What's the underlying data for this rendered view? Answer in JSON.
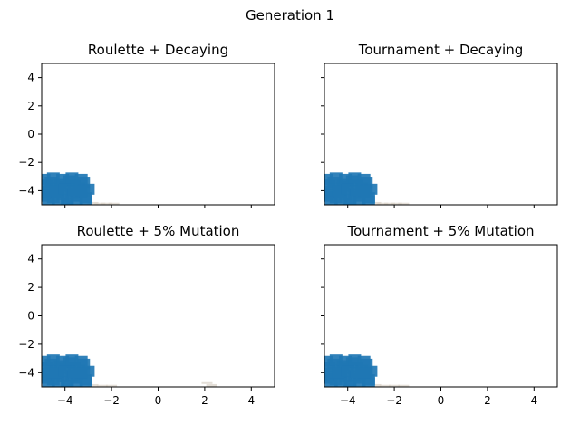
{
  "figure": {
    "title": "Generation 1"
  },
  "chart_data": [
    {
      "type": "scatter",
      "title": "Roulette + Decaying",
      "xlim": [
        -5,
        5
      ],
      "ylim": [
        -5,
        5
      ],
      "xticks": [],
      "yticks": [
        -4,
        -2,
        0,
        2,
        4
      ],
      "xtick_labels": [],
      "ytick_labels": [
        "−4",
        "−2",
        "0",
        "2",
        "4"
      ],
      "color": "#1f77b4",
      "series": [
        {
          "name": "population",
          "points": [
            [
              -4.9,
              -4.4
            ],
            [
              -4.7,
              -4.2
            ],
            [
              -4.5,
              -4.5
            ],
            [
              -4.3,
              -4.1
            ],
            [
              -4.1,
              -4.3
            ],
            [
              -3.9,
              -4.6
            ],
            [
              -3.7,
              -4.2
            ],
            [
              -3.5,
              -4.4
            ],
            [
              -3.3,
              -4.1
            ],
            [
              -3.1,
              -4.5
            ],
            [
              -4.8,
              -3.6
            ],
            [
              -4.6,
              -3.4
            ],
            [
              -4.4,
              -3.8
            ],
            [
              -4.2,
              -3.5
            ],
            [
              -4.0,
              -3.7
            ],
            [
              -3.8,
              -3.3
            ],
            [
              -3.6,
              -3.6
            ],
            [
              -3.4,
              -3.8
            ],
            [
              -3.2,
              -3.4
            ],
            [
              -3.0,
              -3.9
            ],
            [
              -4.9,
              -3.2
            ],
            [
              -4.5,
              -3.1
            ],
            [
              -4.1,
              -3.2
            ],
            [
              -3.7,
              -3.1
            ],
            [
              -3.3,
              -3.2
            ],
            [
              -4.7,
              -4.8
            ],
            [
              -4.3,
              -4.7
            ],
            [
              -3.9,
              -4.9
            ],
            [
              -3.5,
              -4.8
            ],
            [
              -3.1,
              -4.7
            ],
            [
              -4.8,
              -4.0
            ],
            [
              -4.4,
              -4.0
            ],
            [
              -4.0,
              -3.9
            ],
            [
              -3.6,
              -4.0
            ],
            [
              -3.2,
              -4.0
            ]
          ]
        }
      ],
      "faint_points": [
        [
          -2.8,
          -4.9
        ],
        [
          -2.5,
          -4.95
        ],
        [
          -2.2,
          -4.95
        ],
        [
          -1.9,
          -4.95
        ]
      ]
    },
    {
      "type": "scatter",
      "title": "Tournament + Decaying",
      "xlim": [
        -5,
        5
      ],
      "ylim": [
        -5,
        5
      ],
      "xticks": [],
      "yticks": [],
      "xtick_labels": [],
      "ytick_labels": [],
      "color": "#1f77b4",
      "series": [
        {
          "name": "population",
          "points": [
            [
              -4.9,
              -4.4
            ],
            [
              -4.7,
              -4.2
            ],
            [
              -4.5,
              -4.5
            ],
            [
              -4.3,
              -4.1
            ],
            [
              -4.1,
              -4.3
            ],
            [
              -3.9,
              -4.6
            ],
            [
              -3.7,
              -4.2
            ],
            [
              -3.5,
              -4.4
            ],
            [
              -3.3,
              -4.1
            ],
            [
              -3.1,
              -4.5
            ],
            [
              -4.8,
              -3.6
            ],
            [
              -4.6,
              -3.4
            ],
            [
              -4.4,
              -3.8
            ],
            [
              -4.2,
              -3.5
            ],
            [
              -4.0,
              -3.7
            ],
            [
              -3.8,
              -3.3
            ],
            [
              -3.6,
              -3.6
            ],
            [
              -3.4,
              -3.8
            ],
            [
              -3.2,
              -3.4
            ],
            [
              -3.0,
              -3.9
            ],
            [
              -4.9,
              -3.2
            ],
            [
              -4.5,
              -3.1
            ],
            [
              -4.1,
              -3.2
            ],
            [
              -3.7,
              -3.1
            ],
            [
              -3.3,
              -3.2
            ],
            [
              -4.7,
              -4.8
            ],
            [
              -4.3,
              -4.7
            ],
            [
              -3.9,
              -4.9
            ],
            [
              -3.5,
              -4.8
            ],
            [
              -3.1,
              -4.7
            ],
            [
              -4.8,
              -4.0
            ],
            [
              -4.4,
              -4.0
            ],
            [
              -4.0,
              -3.9
            ],
            [
              -3.6,
              -4.0
            ],
            [
              -3.2,
              -4.0
            ]
          ]
        }
      ],
      "faint_points": [
        [
          -2.8,
          -4.9
        ],
        [
          -2.5,
          -4.95
        ],
        [
          -2.2,
          -4.95
        ],
        [
          -1.9,
          -4.95
        ],
        [
          -1.6,
          -4.95
        ]
      ]
    },
    {
      "type": "scatter",
      "title": "Roulette + 5% Mutation",
      "xlim": [
        -5,
        5
      ],
      "ylim": [
        -5,
        5
      ],
      "xticks": [
        -4,
        -2,
        0,
        2,
        4
      ],
      "yticks": [
        -4,
        -2,
        0,
        2,
        4
      ],
      "xtick_labels": [
        "−4",
        "−2",
        "0",
        "2",
        "4"
      ],
      "ytick_labels": [
        "−4",
        "−2",
        "0",
        "2",
        "4"
      ],
      "color": "#1f77b4",
      "series": [
        {
          "name": "population",
          "points": [
            [
              -4.9,
              -4.4
            ],
            [
              -4.7,
              -4.2
            ],
            [
              -4.5,
              -4.5
            ],
            [
              -4.3,
              -4.1
            ],
            [
              -4.1,
              -4.3
            ],
            [
              -3.9,
              -4.6
            ],
            [
              -3.7,
              -4.2
            ],
            [
              -3.5,
              -4.4
            ],
            [
              -3.3,
              -4.1
            ],
            [
              -3.1,
              -4.5
            ],
            [
              -4.8,
              -3.6
            ],
            [
              -4.6,
              -3.4
            ],
            [
              -4.4,
              -3.8
            ],
            [
              -4.2,
              -3.5
            ],
            [
              -4.0,
              -3.7
            ],
            [
              -3.8,
              -3.3
            ],
            [
              -3.6,
              -3.6
            ],
            [
              -3.4,
              -3.8
            ],
            [
              -3.2,
              -3.4
            ],
            [
              -3.0,
              -3.9
            ],
            [
              -4.9,
              -3.2
            ],
            [
              -4.5,
              -3.1
            ],
            [
              -4.1,
              -3.2
            ],
            [
              -3.7,
              -3.1
            ],
            [
              -3.3,
              -3.2
            ],
            [
              -4.7,
              -4.8
            ],
            [
              -4.3,
              -4.7
            ],
            [
              -3.9,
              -4.9
            ],
            [
              -3.5,
              -4.8
            ],
            [
              -3.1,
              -4.7
            ],
            [
              -4.8,
              -4.0
            ],
            [
              -4.4,
              -4.0
            ],
            [
              -4.0,
              -3.9
            ],
            [
              -3.6,
              -4.0
            ],
            [
              -3.2,
              -4.0
            ]
          ]
        }
      ],
      "faint_points": [
        [
          -2.8,
          -4.9
        ],
        [
          -2.4,
          -4.95
        ],
        [
          -2.0,
          -4.95
        ],
        [
          2.1,
          -4.7
        ],
        [
          2.3,
          -4.9
        ]
      ]
    },
    {
      "type": "scatter",
      "title": "Tournament + 5% Mutation",
      "xlim": [
        -5,
        5
      ],
      "ylim": [
        -5,
        5
      ],
      "xticks": [
        -4,
        -2,
        0,
        2,
        4
      ],
      "yticks": [],
      "xtick_labels": [
        "−4",
        "−2",
        "0",
        "2",
        "4"
      ],
      "ytick_labels": [],
      "color": "#1f77b4",
      "series": [
        {
          "name": "population",
          "points": [
            [
              -4.9,
              -4.4
            ],
            [
              -4.7,
              -4.2
            ],
            [
              -4.5,
              -4.5
            ],
            [
              -4.3,
              -4.1
            ],
            [
              -4.1,
              -4.3
            ],
            [
              -3.9,
              -4.6
            ],
            [
              -3.7,
              -4.2
            ],
            [
              -3.5,
              -4.4
            ],
            [
              -3.3,
              -4.1
            ],
            [
              -3.1,
              -4.5
            ],
            [
              -4.8,
              -3.6
            ],
            [
              -4.6,
              -3.4
            ],
            [
              -4.4,
              -3.8
            ],
            [
              -4.2,
              -3.5
            ],
            [
              -4.0,
              -3.7
            ],
            [
              -3.8,
              -3.3
            ],
            [
              -3.6,
              -3.6
            ],
            [
              -3.4,
              -3.8
            ],
            [
              -3.2,
              -3.4
            ],
            [
              -3.0,
              -3.9
            ],
            [
              -4.9,
              -3.2
            ],
            [
              -4.5,
              -3.1
            ],
            [
              -4.1,
              -3.2
            ],
            [
              -3.7,
              -3.1
            ],
            [
              -3.3,
              -3.2
            ],
            [
              -4.7,
              -4.8
            ],
            [
              -4.3,
              -4.7
            ],
            [
              -3.9,
              -4.9
            ],
            [
              -3.5,
              -4.8
            ],
            [
              -3.1,
              -4.7
            ],
            [
              -4.8,
              -4.0
            ],
            [
              -4.4,
              -4.0
            ],
            [
              -4.0,
              -3.9
            ],
            [
              -3.6,
              -4.0
            ],
            [
              -3.2,
              -4.0
            ]
          ]
        }
      ],
      "faint_points": [
        [
          -2.8,
          -4.9
        ],
        [
          -2.4,
          -4.95
        ],
        [
          -2.0,
          -4.95
        ],
        [
          -1.6,
          -4.95
        ]
      ]
    }
  ]
}
